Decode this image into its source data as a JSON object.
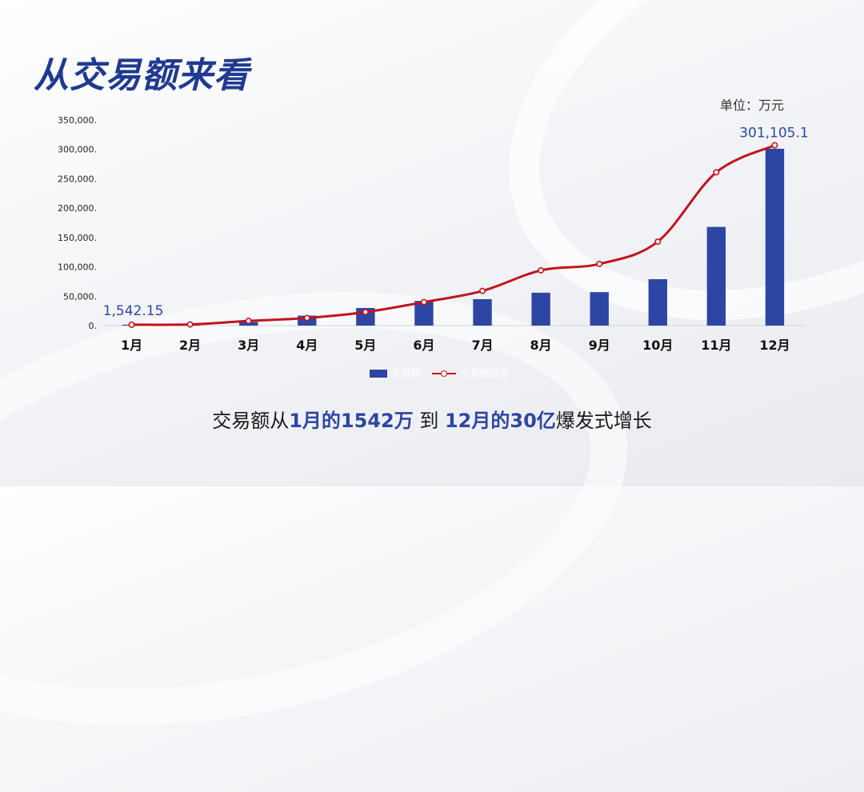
{
  "title": "从交易额来看",
  "unit_label": "单位：万元",
  "caption": {
    "part1": "交易额从",
    "highlight1": "1月的1542万",
    "part2": " 到 ",
    "highlight2": "12月的30亿",
    "part3": "爆发式增长"
  },
  "colors": {
    "bar": "#2e46a3",
    "line": "#c0141c",
    "title": "#1f3a8f"
  },
  "legend": [
    {
      "name": "交易额",
      "icon": "bar-swatch"
    },
    {
      "name": "交易额趋势",
      "icon": "line-swatch"
    }
  ],
  "chart_data": {
    "type": "bar",
    "categories": [
      "1月",
      "2月",
      "3月",
      "4月",
      "5月",
      "6月",
      "7月",
      "8月",
      "9月",
      "10月",
      "11月",
      "12月"
    ],
    "series": [
      {
        "name": "交易额",
        "type": "bar",
        "values": [
          1542.15,
          2000,
          6000,
          17000,
          30000,
          42000,
          45000,
          56000,
          57000,
          79000,
          168000,
          301105.1
        ]
      },
      {
        "name": "交易额趋势",
        "type": "line",
        "values": [
          1542.15,
          2000,
          8000,
          13000,
          23000,
          40000,
          59000,
          94000,
          105000,
          143000,
          261000,
          307000
        ]
      }
    ],
    "y_ticks": [
      "0.",
      "50,000.",
      "100,000.",
      "150,000.",
      "200,000.",
      "250,000.",
      "300,000.",
      "350,000."
    ],
    "ylim": [
      0,
      350000
    ],
    "data_labels": [
      {
        "index": 0,
        "text": "1,542.15"
      },
      {
        "index": 11,
        "text": "301,105.1"
      }
    ],
    "legend_position": "bottom",
    "grid": false
  }
}
